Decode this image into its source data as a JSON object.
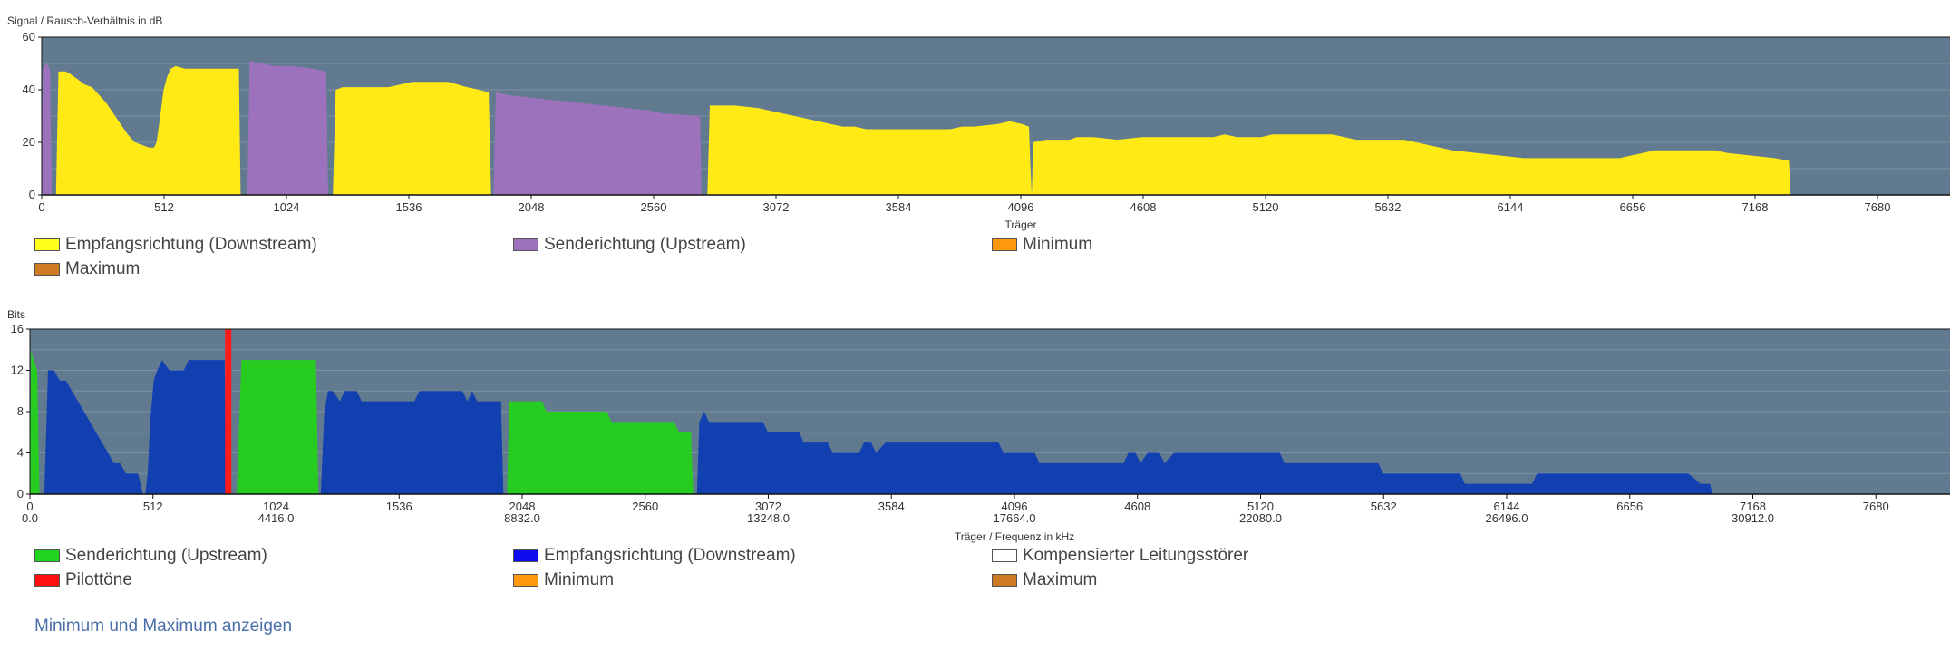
{
  "chart_data": [
    {
      "type": "area",
      "ylabel": "Signal / Rausch-Verhältnis in dB",
      "xlabel": "Träger",
      "ylim": [
        0,
        60
      ],
      "yticks": [
        "0",
        "20",
        "40",
        "60"
      ],
      "xlim": [
        0,
        8192
      ],
      "xticks": [
        "0",
        "512",
        "1024",
        "1536",
        "2048",
        "2560",
        "3072",
        "3584",
        "4096",
        "4608",
        "5120",
        "5632",
        "6144",
        "6656",
        "7168",
        "7680",
        "8192"
      ],
      "background_color": "#627a90",
      "grid": true,
      "series": [
        {
          "name": "Empfangsrichtung (Downstream)",
          "color": "#ffea16",
          "points": [
            [
              60,
              0
            ],
            [
              70,
              47
            ],
            [
              100,
              47
            ],
            [
              120,
              46
            ],
            [
              150,
              44
            ],
            [
              180,
              42
            ],
            [
              210,
              41
            ],
            [
              240,
              38
            ],
            [
              270,
              35
            ],
            [
              300,
              31
            ],
            [
              330,
              27
            ],
            [
              360,
              23
            ],
            [
              390,
              20
            ],
            [
              420,
              19
            ],
            [
              450,
              18
            ],
            [
              470,
              18
            ],
            [
              480,
              20
            ],
            [
              490,
              26
            ],
            [
              500,
              33
            ],
            [
              510,
              40
            ],
            [
              525,
              45
            ],
            [
              540,
              48
            ],
            [
              560,
              49
            ],
            [
              600,
              48
            ],
            [
              700,
              48
            ],
            [
              825,
              48
            ],
            [
              832,
              0
            ]
          ]
        },
        {
          "name": "Sendericht (Upstream)",
          "color": "#9b72bb",
          "points": [
            [
              0,
              0
            ],
            [
              5,
              48
            ],
            [
              20,
              50
            ],
            [
              35,
              48
            ],
            [
              42,
              0
            ]
          ]
        },
        {
          "name": "Sendericht (Upstream)",
          "color": "#9b72bb",
          "points": [
            [
              860,
              0
            ],
            [
              870,
              51
            ],
            [
              920,
              50
            ],
            [
              980,
              49
            ],
            [
              1050,
              49
            ],
            [
              1130,
              48
            ],
            [
              1190,
              47
            ],
            [
              1198,
              0
            ]
          ]
        },
        {
          "name": "Empfangsrichtung (Downstream)",
          "color": "#ffea16",
          "points": [
            [
              1218,
              0
            ],
            [
              1230,
              40
            ],
            [
              1260,
              41
            ],
            [
              1450,
              41
            ],
            [
              1500,
              42
            ],
            [
              1550,
              43
            ],
            [
              1700,
              43
            ],
            [
              1780,
              41
            ],
            [
              1830,
              40
            ],
            [
              1870,
              39
            ],
            [
              1880,
              0
            ]
          ]
        },
        {
          "name": "Sendericht (Upstream)",
          "color": "#9b72bb",
          "points": [
            [
              1890,
              0
            ],
            [
              1900,
              39
            ],
            [
              1950,
              38
            ],
            [
              2050,
              37
            ],
            [
              2150,
              36
            ],
            [
              2250,
              35
            ],
            [
              2350,
              34
            ],
            [
              2450,
              33
            ],
            [
              2550,
              32
            ],
            [
              2600,
              31
            ],
            [
              2755,
              30
            ],
            [
              2760,
              0
            ]
          ]
        },
        {
          "name": "Empfangsrichtung (Downstream)",
          "color": "#ffea16",
          "points": [
            [
              2785,
              0
            ],
            [
              2795,
              34
            ],
            [
              2900,
              34
            ],
            [
              3000,
              33
            ],
            [
              3050,
              32
            ],
            [
              3100,
              31
            ],
            [
              3150,
              30
            ],
            [
              3200,
              29
            ],
            [
              3250,
              28
            ],
            [
              3300,
              27
            ],
            [
              3350,
              26
            ],
            [
              3400,
              26
            ],
            [
              3450,
              25
            ],
            [
              3800,
              25
            ],
            [
              3850,
              26
            ],
            [
              3900,
              26
            ],
            [
              4000,
              27
            ],
            [
              4050,
              28
            ],
            [
              4100,
              27
            ],
            [
              4130,
              26
            ],
            [
              4136,
              12
            ],
            [
              4142,
              0
            ],
            [
              4148,
              20
            ],
            [
              4200,
              21
            ],
            [
              4300,
              21
            ],
            [
              4330,
              22
            ],
            [
              4400,
              22
            ],
            [
              4500,
              21
            ],
            [
              4600,
              22
            ],
            [
              4800,
              22
            ],
            [
              4900,
              22
            ],
            [
              4950,
              23
            ],
            [
              5000,
              22
            ],
            [
              5100,
              22
            ],
            [
              5150,
              23
            ],
            [
              5300,
              23
            ],
            [
              5400,
              23
            ],
            [
              5450,
              22
            ],
            [
              5500,
              21
            ],
            [
              5600,
              21
            ],
            [
              5700,
              21
            ],
            [
              5750,
              20
            ],
            [
              5800,
              19
            ],
            [
              5850,
              18
            ],
            [
              5900,
              17
            ],
            [
              6000,
              16
            ],
            [
              6100,
              15
            ],
            [
              6200,
              14
            ],
            [
              6600,
              14
            ],
            [
              6650,
              15
            ],
            [
              6700,
              16
            ],
            [
              6750,
              17
            ],
            [
              7000,
              17
            ],
            [
              7050,
              16
            ],
            [
              7150,
              15
            ],
            [
              7250,
              14
            ],
            [
              7310,
              13
            ],
            [
              7316,
              0
            ]
          ]
        }
      ]
    },
    {
      "type": "area",
      "ylabel": "Bits",
      "xlabel": "Träger / Frequenz in kHz",
      "ylim": [
        0,
        16
      ],
      "yticks": [
        "0",
        "4",
        "8",
        "12",
        "16"
      ],
      "xlim": [
        0,
        8192
      ],
      "xticks": [
        "0",
        "512",
        "1024",
        "1536",
        "2048",
        "2560",
        "3072",
        "3584",
        "4096",
        "4608",
        "5120",
        "5632",
        "6144",
        "6656",
        "7168",
        "7680",
        "8192"
      ],
      "freq_ticks": [
        "0.0",
        "4416.0",
        "8832.0",
        "13248.0",
        "17664.0",
        "22080.0",
        "26496.0",
        "30912.0",
        "35328.0"
      ],
      "background_color": "#627a90",
      "grid": true,
      "series": [
        {
          "name": "Empfangsrichtung (Downstream)",
          "color": "#1240b0",
          "points": [
            [
              60,
              0
            ],
            [
              75,
              12
            ],
            [
              100,
              12
            ],
            [
              125,
              11
            ],
            [
              150,
              11
            ],
            [
              175,
              10
            ],
            [
              200,
              9
            ],
            [
              225,
              8
            ],
            [
              250,
              7
            ],
            [
              275,
              6
            ],
            [
              300,
              5
            ],
            [
              325,
              4
            ],
            [
              350,
              3
            ],
            [
              375,
              3
            ],
            [
              400,
              2
            ],
            [
              425,
              2
            ],
            [
              450,
              2
            ],
            [
              460,
              1
            ],
            [
              470,
              0
            ],
            [
              480,
              0
            ],
            [
              490,
              2
            ],
            [
              500,
              7
            ],
            [
              515,
              11
            ],
            [
              530,
              12
            ],
            [
              550,
              13
            ],
            [
              580,
              12
            ],
            [
              600,
              12
            ],
            [
              640,
              12
            ],
            [
              660,
              13
            ],
            [
              700,
              13
            ],
            [
              810,
              13
            ],
            [
              816,
              0
            ]
          ]
        },
        {
          "name": "Senderichtung (Upstream)",
          "color": "#27cc21",
          "points": [
            [
              0,
              0
            ],
            [
              5,
              14
            ],
            [
              15,
              13
            ],
            [
              30,
              12
            ],
            [
              40,
              0
            ]
          ]
        },
        {
          "name": "Pilottöne",
          "color": "#ff1a1a",
          "points": [
            [
              812,
              0
            ],
            [
              812,
              16
            ],
            [
              838,
              16
            ],
            [
              838,
              0
            ]
          ]
        },
        {
          "name": "Senderichtung (Upstream)",
          "color": "#27cc21",
          "points": [
            [
              860,
              0
            ],
            [
              880,
              13
            ],
            [
              1190,
              13
            ],
            [
              1200,
              0
            ]
          ]
        },
        {
          "name": "Empfangsrichtung (Downstream)",
          "color": "#1240b0",
          "points": [
            [
              1210,
              0
            ],
            [
              1225,
              8
            ],
            [
              1240,
              10
            ],
            [
              1260,
              10
            ],
            [
              1290,
              9
            ],
            [
              1310,
              10
            ],
            [
              1360,
              10
            ],
            [
              1380,
              9
            ],
            [
              1600,
              9
            ],
            [
              1620,
              10
            ],
            [
              1800,
              10
            ],
            [
              1820,
              9
            ],
            [
              1840,
              10
            ],
            [
              1860,
              9
            ],
            [
              1960,
              9
            ],
            [
              1970,
              0
            ]
          ]
        },
        {
          "name": "Senderichtung (Upstream)",
          "color": "#27cc21",
          "points": [
            [
              1985,
              0
            ],
            [
              1995,
              9
            ],
            [
              2130,
              9
            ],
            [
              2150,
              8
            ],
            [
              2400,
              8
            ],
            [
              2420,
              7
            ],
            [
              2680,
              7
            ],
            [
              2700,
              6
            ],
            [
              2750,
              6
            ],
            [
              2760,
              0
            ]
          ]
        },
        {
          "name": "Empfangsrichtung (Downstream)",
          "color": "#1240b0",
          "points": [
            [
              2775,
              0
            ],
            [
              2785,
              7
            ],
            [
              2805,
              8
            ],
            [
              2825,
              7
            ],
            [
              3050,
              7
            ],
            [
              3070,
              6
            ],
            [
              3200,
              6
            ],
            [
              3220,
              5
            ],
            [
              3320,
              5
            ],
            [
              3340,
              4
            ],
            [
              3450,
              4
            ],
            [
              3470,
              5
            ],
            [
              3500,
              5
            ],
            [
              3520,
              4
            ],
            [
              3560,
              5
            ],
            [
              4030,
              5
            ],
            [
              4050,
              4
            ],
            [
              4180,
              4
            ],
            [
              4200,
              3
            ],
            [
              4550,
              3
            ],
            [
              4570,
              4
            ],
            [
              4600,
              4
            ],
            [
              4620,
              3
            ],
            [
              4650,
              4
            ],
            [
              4700,
              4
            ],
            [
              4720,
              3
            ],
            [
              4760,
              4
            ],
            [
              5200,
              4
            ],
            [
              5220,
              3
            ],
            [
              5610,
              3
            ],
            [
              5630,
              2
            ],
            [
              5950,
              2
            ],
            [
              5970,
              1
            ],
            [
              6250,
              1
            ],
            [
              6270,
              2
            ],
            [
              6900,
              2
            ],
            [
              6950,
              1
            ],
            [
              6990,
              1
            ],
            [
              7000,
              0
            ]
          ]
        }
      ]
    }
  ],
  "legend1": [
    {
      "label": "Empfangsrichtung (Downstream)",
      "color": "#ffff1a"
    },
    {
      "label": "Senderichtung (Upstream)",
      "color": "#9b72bb"
    },
    {
      "label": "Minimum",
      "color": "#ff9a0e"
    },
    {
      "label": "Maximum",
      "color": "#cd7a23"
    }
  ],
  "legend2": [
    {
      "label": "Senderichtung (Upstream)",
      "color": "#1ed41e"
    },
    {
      "label": "Empfangsrichtung (Downstream)",
      "color": "#0d0dee"
    },
    {
      "label": "Kompensierter Leitungsstörer",
      "color": "#ffffff"
    },
    {
      "label": "Pilottöne",
      "color": "#ff1010"
    },
    {
      "label": "Minimum",
      "color": "#ff9a0e"
    },
    {
      "label": "Maximum",
      "color": "#cd7a23"
    }
  ],
  "toggle_link": "Minimum und Maximum anzeigen"
}
